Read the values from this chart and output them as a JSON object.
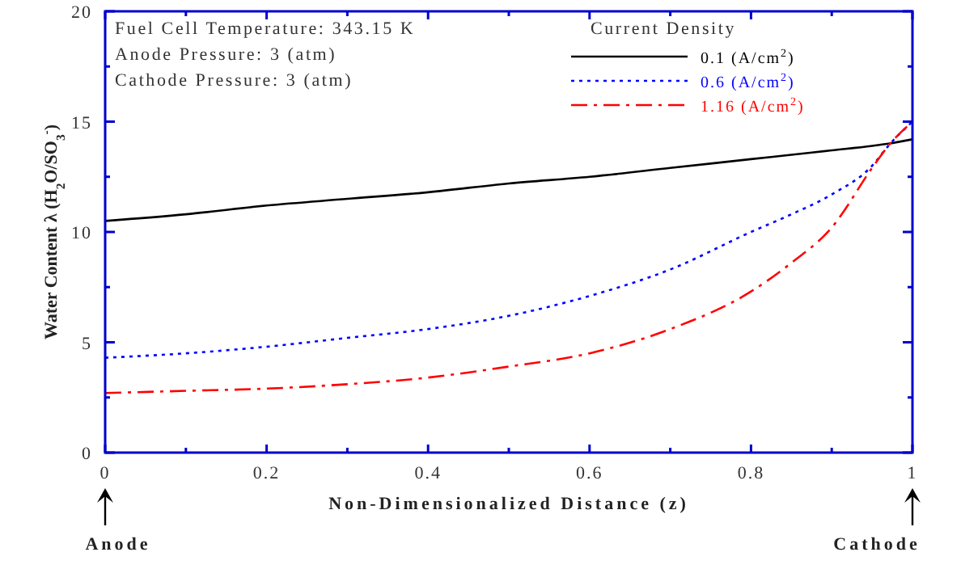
{
  "chart_data": {
    "type": "line",
    "xlabel": "Non-Dimensionalized Distance (z)",
    "ylabel": "Water Content λ (H$_{2}$O/SO$_{3}$$^{-}$)",
    "legend_title": "Current Density",
    "legend": "top right",
    "grid": false,
    "marker": "none",
    "xlim": [
      0,
      1
    ],
    "xticks": [
      0,
      0.2,
      0.4,
      0.6,
      0.8,
      1,
      {
        "value": 0.1,
        "label": null
      },
      {
        "value": 0.3,
        "label": null
      },
      {
        "value": 0.5,
        "label": null
      },
      {
        "value": 0.7,
        "label": null
      },
      {
        "value": 0.9,
        "label": null
      }
    ],
    "ylim": [
      0,
      20
    ],
    "yticks": [
      0,
      5,
      10,
      15,
      20,
      {
        "value": 2.5,
        "label": null
      },
      {
        "value": 7.5,
        "label": null
      },
      {
        "value": 12.5,
        "label": null
      },
      {
        "value": 17.5,
        "label": null
      }
    ],
    "x": [
      0,
      0.1,
      0.2,
      0.3,
      0.4,
      0.5,
      0.6,
      0.7,
      0.8,
      0.85,
      0.9,
      0.95,
      0.97,
      1
    ],
    "series": [
      {
        "name": "0.1   (A/cm$^{2}$)",
        "color": "#000000",
        "line_style": "solid",
        "values": [
          10.5,
          10.8,
          11.2,
          11.5,
          11.8,
          12.2,
          12.5,
          12.9,
          13.3,
          13.5,
          13.7,
          13.9,
          14.0,
          14.2
        ]
      },
      {
        "name": "0.6   (A/cm$^{2}$)",
        "color": "#0000ff",
        "line_style": "dotted",
        "values": [
          4.3,
          4.5,
          4.8,
          5.2,
          5.6,
          6.2,
          7.1,
          8.3,
          10.0,
          10.8,
          11.7,
          13.0,
          13.9,
          15.0
        ]
      },
      {
        "name": "1.16 (A/cm$^{2}$)",
        "color": "#ff0000",
        "line_style": "dashed",
        "values": [
          2.7,
          2.8,
          2.9,
          3.1,
          3.4,
          3.9,
          4.5,
          5.6,
          7.3,
          8.6,
          10.2,
          12.9,
          13.9,
          15.0
        ]
      }
    ],
    "annotations": [
      "Fuel Cell Temperature: 343.15 K",
      "Anode Pressure:  3 (atm)",
      "Cathode Pressure:  3 (atm)",
      "Anode",
      "Cathode"
    ]
  }
}
